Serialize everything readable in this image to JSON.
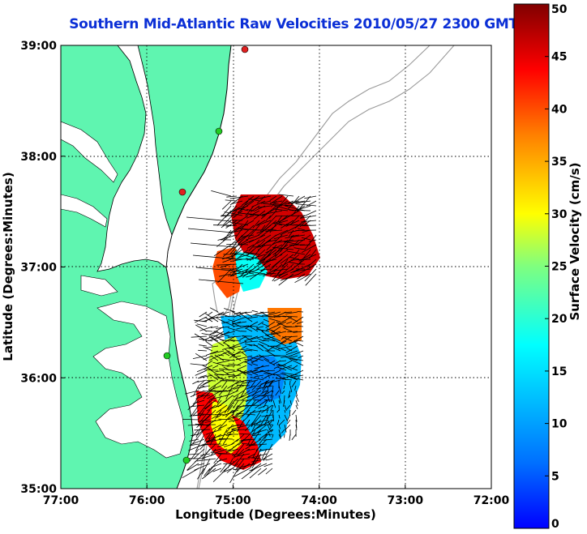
{
  "title": "Southern Mid-Atlantic Raw Velocities 2010/05/27 2300 GMT",
  "map": {
    "xlabel": "Longitude (Degrees:Minutes)",
    "ylabel": "Latitude (Degrees:Minutes)",
    "lon_ticks": [
      "77:00",
      "76:00",
      "75:00",
      "74:00",
      "73:00",
      "72:00"
    ],
    "lat_ticks": [
      "39:00",
      "38:00",
      "37:00",
      "36:00",
      "35:00"
    ],
    "lon_range": [
      -77,
      -72
    ],
    "lat_range": [
      35,
      39
    ],
    "grid": true,
    "colors": {
      "land": "#5ff5b0",
      "water": "#ffffff",
      "coastline": "#000000",
      "bathymetry": "#9a9a9a",
      "arrows": "#000000"
    }
  },
  "colorbar": {
    "label": "Surface Velocity (cm/s)",
    "ticks": [
      "0",
      "5",
      "10",
      "15",
      "20",
      "25",
      "30",
      "35",
      "40",
      "45",
      "50"
    ],
    "range": [
      0,
      50
    ],
    "colormap": "jet"
  },
  "stations": [
    {
      "status": "active",
      "color": "#22cc22"
    },
    {
      "status": "inactive",
      "color": "#e02020"
    },
    {
      "status": "active",
      "color": "#22cc22"
    },
    {
      "status": "active",
      "color": "#22cc22"
    },
    {
      "status": "inactive",
      "color": "#e02020"
    }
  ]
}
